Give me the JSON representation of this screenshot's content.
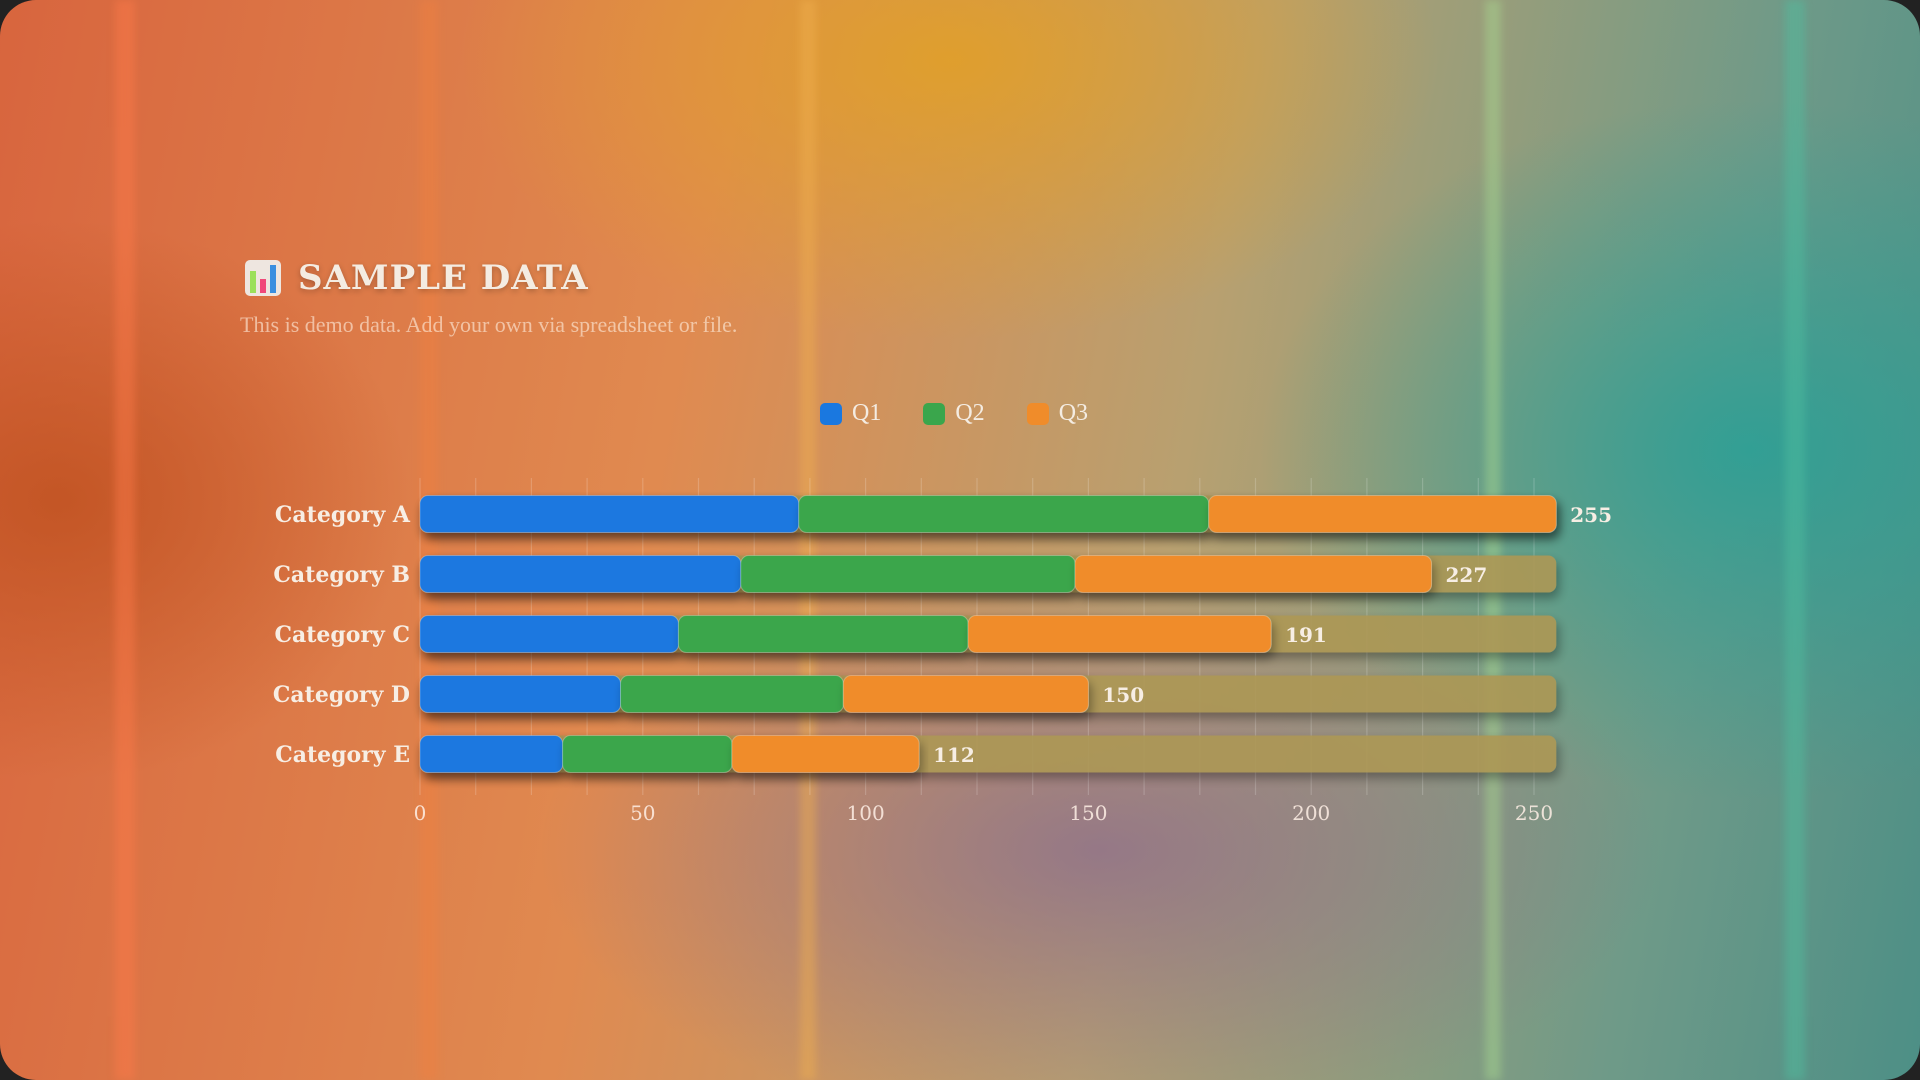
{
  "header": {
    "icon": "bar-chart-icon",
    "title": "SAMPLE DATA",
    "subtitle": "This is demo data. Add your own via spreadsheet or file."
  },
  "chart_data": {
    "type": "bar",
    "orientation": "horizontal",
    "stacked": true,
    "categories": [
      "Category A",
      "Category B",
      "Category C",
      "Category D",
      "Category E"
    ],
    "series": [
      {
        "name": "Q1",
        "color": "#1a78e0",
        "values": [
          85,
          72,
          58,
          45,
          32
        ]
      },
      {
        "name": "Q2",
        "color": "#3aa64c",
        "values": [
          92,
          75,
          65,
          50,
          38
        ]
      },
      {
        "name": "Q3",
        "color": "#f08c2a",
        "values": [
          78,
          80,
          68,
          55,
          42
        ]
      }
    ],
    "totals": [
      255,
      227,
      191,
      150,
      112
    ],
    "xlim": [
      0,
      255
    ],
    "xticks": [
      0,
      50,
      100,
      150,
      200,
      250
    ],
    "grid": true,
    "legend": "top-center",
    "track_color": "#ad9855"
  }
}
